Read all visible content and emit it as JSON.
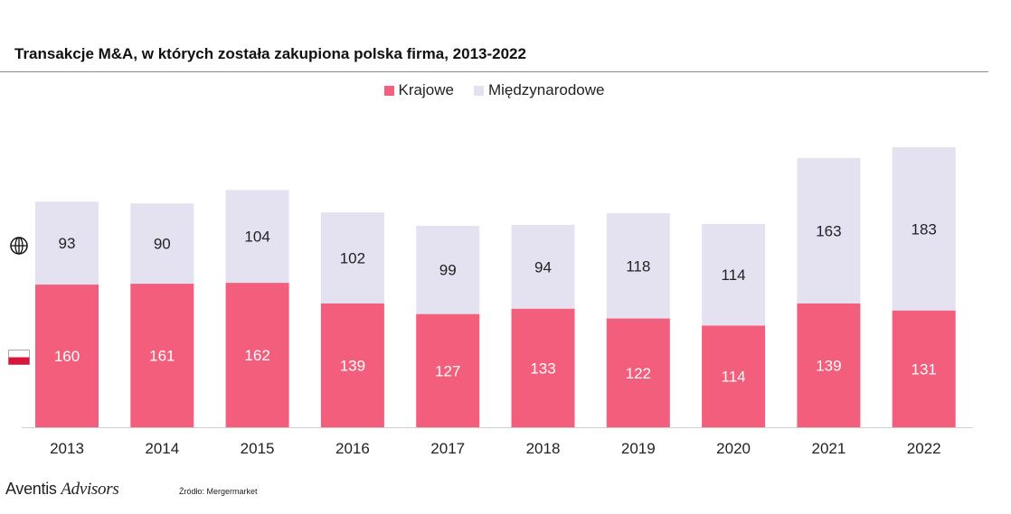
{
  "title": "Transakcje M&A, w których została zakupiona polska firma, 2013-2022",
  "brand": {
    "name_part1": "Aventis",
    "name_part2": "Advisors"
  },
  "source": "Źródło: Mergermarket",
  "icons": {
    "international": "globe-icon",
    "domestic": "poland-flag-icon"
  },
  "colors": {
    "domestic": "#f25e7b",
    "international": "#e4e2f0",
    "flag_red": "#dc143c"
  },
  "chart_data": {
    "type": "bar",
    "stacked": true,
    "title": "Transakcje M&A, w których została zakupiona polska firma, 2013-2022",
    "categories": [
      "2013",
      "2014",
      "2015",
      "2016",
      "2017",
      "2018",
      "2019",
      "2020",
      "2021",
      "2022"
    ],
    "series": [
      {
        "name": "Krajowe",
        "color": "#f25e7b",
        "values": [
          160,
          161,
          162,
          139,
          127,
          133,
          122,
          114,
          139,
          131
        ]
      },
      {
        "name": "Międzynarodowe",
        "color": "#e4e2f0",
        "values": [
          93,
          90,
          104,
          102,
          99,
          94,
          118,
          114,
          163,
          183
        ]
      }
    ],
    "ylim": [
      0,
      314
    ],
    "grid": false,
    "legend": "top-center"
  }
}
